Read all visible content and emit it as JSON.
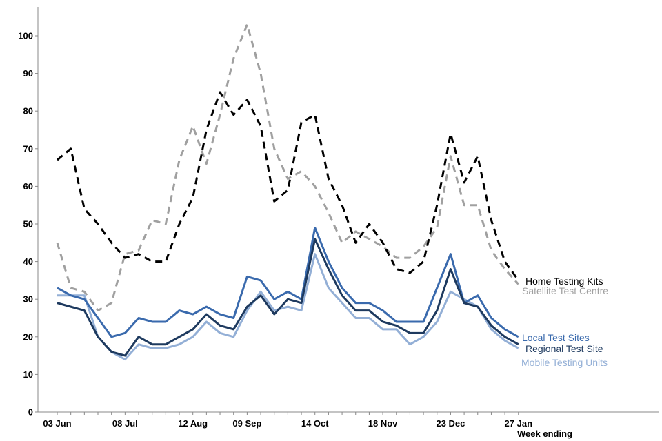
{
  "chart_data": {
    "type": "line",
    "xlabel": "Week ending",
    "ylabel": "",
    "ylim": [
      0,
      105
    ],
    "yticks": [
      0,
      10,
      20,
      30,
      40,
      50,
      60,
      70,
      80,
      90,
      100
    ],
    "grid": false,
    "legend": "inline-right",
    "x_ticks": [
      {
        "index": 0,
        "label": "03 Jun"
      },
      {
        "index": 5,
        "label": "08 Jul"
      },
      {
        "index": 10,
        "label": "12 Aug"
      },
      {
        "index": 14,
        "label": "09 Sep"
      },
      {
        "index": 19,
        "label": "14 Oct"
      },
      {
        "index": 24,
        "label": "18 Nov"
      },
      {
        "index": 29,
        "label": "23 Dec"
      },
      {
        "index": 34,
        "label": "27 Jan"
      }
    ],
    "series": [
      {
        "name": "Home Testing Kits",
        "color": "#000000",
        "dashed": true,
        "values": [
          67,
          70,
          54,
          50,
          45,
          41,
          42,
          40,
          40,
          50,
          57,
          75,
          85,
          79,
          83,
          76,
          56,
          59,
          77,
          79,
          62,
          55,
          45,
          50,
          45,
          38,
          37,
          40,
          55,
          74,
          61,
          68,
          51,
          40,
          35
        ]
      },
      {
        "name": "Satellite Test Centre",
        "color": "#a0a0a0",
        "dashed": true,
        "values": [
          45,
          33,
          32,
          27,
          29,
          42,
          43,
          51,
          50,
          67,
          76,
          66,
          79,
          94,
          103,
          90,
          70,
          62,
          64,
          60,
          53,
          45,
          48,
          46,
          44,
          41,
          41,
          44,
          49,
          68,
          55,
          55,
          43,
          38,
          34
        ]
      },
      {
        "name": "Local Test Sites",
        "color": "#3a6aad",
        "dashed": false,
        "values": [
          33,
          31,
          30,
          25,
          20,
          21,
          25,
          24,
          24,
          27,
          26,
          28,
          26,
          25,
          36,
          35,
          30,
          32,
          30,
          49,
          40,
          33,
          29,
          29,
          27,
          24,
          24,
          24,
          33,
          42,
          29,
          31,
          25,
          22,
          20
        ]
      },
      {
        "name": "Regional Test Site",
        "color": "#1e3a5f",
        "dashed": false,
        "values": [
          29,
          28,
          27,
          20,
          16,
          15,
          20,
          18,
          18,
          20,
          22,
          26,
          23,
          22,
          28,
          31,
          26,
          30,
          29,
          46,
          38,
          31,
          27,
          27,
          24,
          23,
          21,
          21,
          27,
          38,
          29,
          28,
          23,
          20,
          18
        ]
      },
      {
        "name": "Mobile Testing Units",
        "color": "#93afd6",
        "dashed": false,
        "values": [
          31,
          31,
          31,
          20,
          16,
          14,
          18,
          17,
          17,
          18,
          20,
          24,
          21,
          20,
          27,
          32,
          27,
          28,
          27,
          42,
          33,
          29,
          25,
          25,
          22,
          22,
          18,
          20,
          24,
          32,
          30,
          28,
          22,
          19,
          17
        ]
      }
    ]
  }
}
